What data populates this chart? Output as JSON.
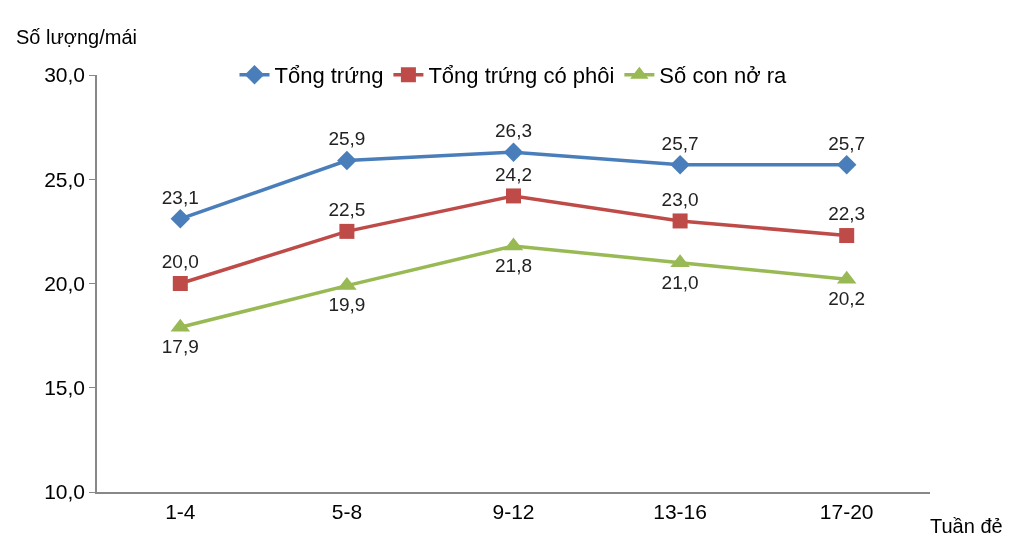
{
  "chart_data": {
    "type": "line",
    "xlabel": "Tuần đẻ",
    "ylabel": "Số lượng/mái",
    "categories": [
      "1-4",
      "5-8",
      "9-12",
      "13-16",
      "17-20"
    ],
    "series": [
      {
        "name": "Tổng trứng",
        "color": "#4a7ebb",
        "marker": "diamond",
        "values": [
          23.1,
          25.9,
          26.3,
          25.7,
          25.7
        ],
        "value_labels": [
          "23,1",
          "25,9",
          "26,3",
          "25,7",
          "25,7"
        ]
      },
      {
        "name": "Tổng trứng có phôi",
        "color": "#be4b48",
        "marker": "square",
        "values": [
          20.0,
          22.5,
          24.2,
          23.0,
          22.3
        ],
        "value_labels": [
          "20,0",
          "22,5",
          "24,2",
          "23,0",
          "22,3"
        ]
      },
      {
        "name": "Số con nở ra",
        "color": "#98b954",
        "marker": "triangle",
        "values": [
          17.9,
          19.9,
          21.8,
          21.0,
          20.2
        ],
        "value_labels": [
          "17,9",
          "19,9",
          "21,8",
          "21,0",
          "20,2"
        ]
      }
    ],
    "ylim": [
      10,
      30
    ],
    "yticks": [
      {
        "value": 10,
        "label": "10,0"
      },
      {
        "value": 15,
        "label": "15,0"
      },
      {
        "value": 20,
        "label": "20,0"
      },
      {
        "value": 25,
        "label": "25,0"
      },
      {
        "value": 30,
        "label": "30,0"
      }
    ],
    "grid": false,
    "legend": "top",
    "line_style": "solid"
  }
}
